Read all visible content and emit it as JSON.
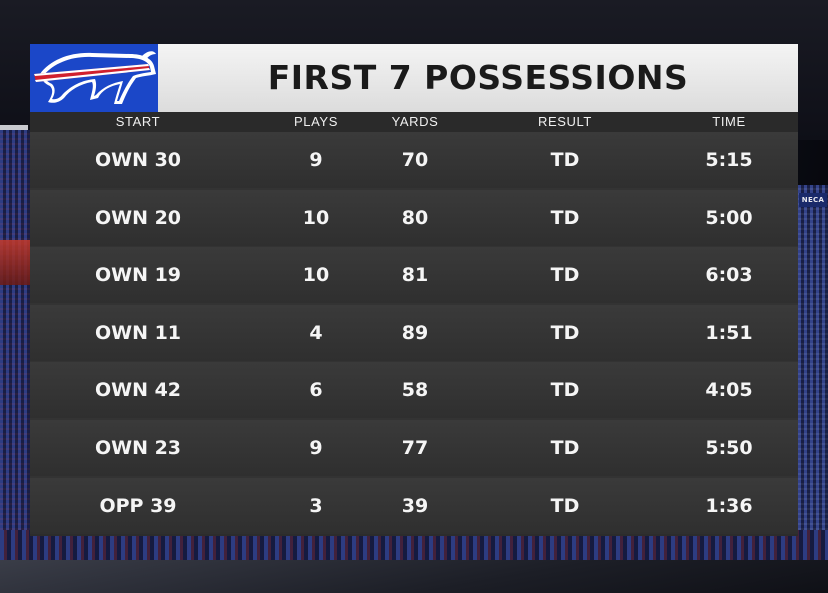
{
  "title": "FIRST 7 POSSESSIONS",
  "colors": {
    "team_blue": "#1b47c8",
    "team_red": "#d0202e",
    "header_bg": "#e8e8e8",
    "row_bg": "#333333",
    "text_light": "#f5f5f5"
  },
  "logo": {
    "name": "buffalo-bills-logo"
  },
  "columns": {
    "start": "START",
    "plays": "PLAYS",
    "yards": "YARDS",
    "result": "RESULT",
    "time": "TIME"
  },
  "possessions": [
    {
      "start": "OWN 30",
      "plays": "9",
      "yards": "70",
      "result": "TD",
      "time": "5:15"
    },
    {
      "start": "OWN 20",
      "plays": "10",
      "yards": "80",
      "result": "TD",
      "time": "5:00"
    },
    {
      "start": "OWN 19",
      "plays": "10",
      "yards": "81",
      "result": "TD",
      "time": "6:03"
    },
    {
      "start": "OWN 11",
      "plays": "4",
      "yards": "89",
      "result": "TD",
      "time": "1:51"
    },
    {
      "start": "OWN 42",
      "plays": "6",
      "yards": "58",
      "result": "TD",
      "time": "4:05"
    },
    {
      "start": "OWN 23",
      "plays": "9",
      "yards": "77",
      "result": "TD",
      "time": "5:50"
    },
    {
      "start": "OPP 39",
      "plays": "3",
      "yards": "39",
      "result": "TD",
      "time": "1:36"
    }
  ],
  "background": {
    "sign_text": "NECA"
  }
}
